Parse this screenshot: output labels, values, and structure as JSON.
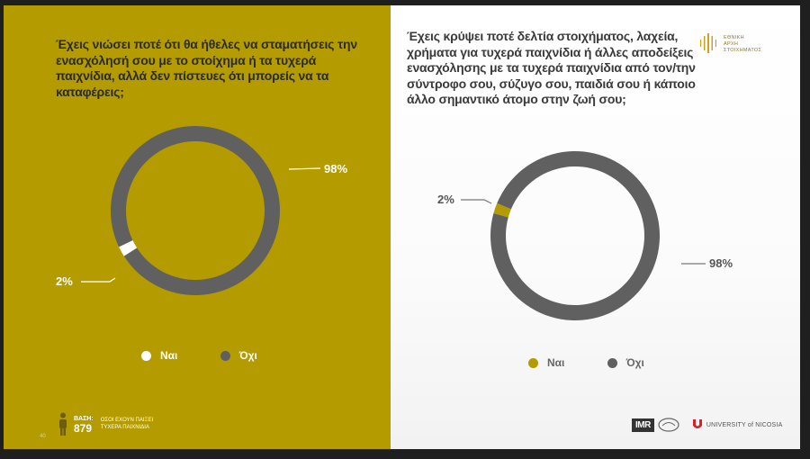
{
  "colors": {
    "left_background": "#b39b00",
    "ring_dark": "#606060",
    "slice_left_nai": "#ffffff",
    "slice_right_nai": "#b39b00",
    "legend_left_nai": "#ffffff",
    "legend_right_nai": "#b39b00",
    "legend_ochi": "#606060"
  },
  "logos": {
    "authority": [
      "ΕΘΝΙΚΗ",
      "ΑΡΧΗ",
      "ΣΤΟΙΧΗΜΑΤΟΣ"
    ],
    "imr": "IMR",
    "university": "UNIVERSITY of NICOSIA"
  },
  "base": {
    "label": "ΒΑΣΗ:",
    "value": "879",
    "description": [
      "ΟΣΟΙ ΕΧΟΥΝ ΠΑΙΞΕΙ",
      "ΤΥΧΕΡΑ ΠΑΙΧΝΙΔΙΑ"
    ]
  },
  "page_number": "40",
  "chart_data": [
    {
      "type": "pie",
      "title": "Έχεις νιώσει ποτέ ότι θα ήθελες να σταματήσεις την ενασχόλησή σου με το στοίχημα ή τα τυχερά παιχνίδια, αλλά δεν πίστευες ότι μπορείς να τα καταφέρεις;",
      "categories": [
        "Ναι",
        "Όχι"
      ],
      "values": [
        2,
        98
      ],
      "labels": [
        "2%",
        "98%"
      ],
      "legend_placement": "bottom"
    },
    {
      "type": "pie",
      "title": "Έχεις κρύψει ποτέ δελτία στοιχήματος, λαχεία, χρήματα για τυχερά παιχνίδια ή άλλες αποδείξεις ενασχόλησης με τα τυχερά παιχνίδια από τον/την σύντροφο σου, σύζυγο σου, παιδιά σου ή κάποιο άλλο σημαντικό άτομο στην ζωή σου;",
      "categories": [
        "Ναι",
        "Όχι"
      ],
      "values": [
        2,
        98
      ],
      "labels": [
        "2%",
        "98%"
      ],
      "legend_placement": "bottom"
    }
  ]
}
